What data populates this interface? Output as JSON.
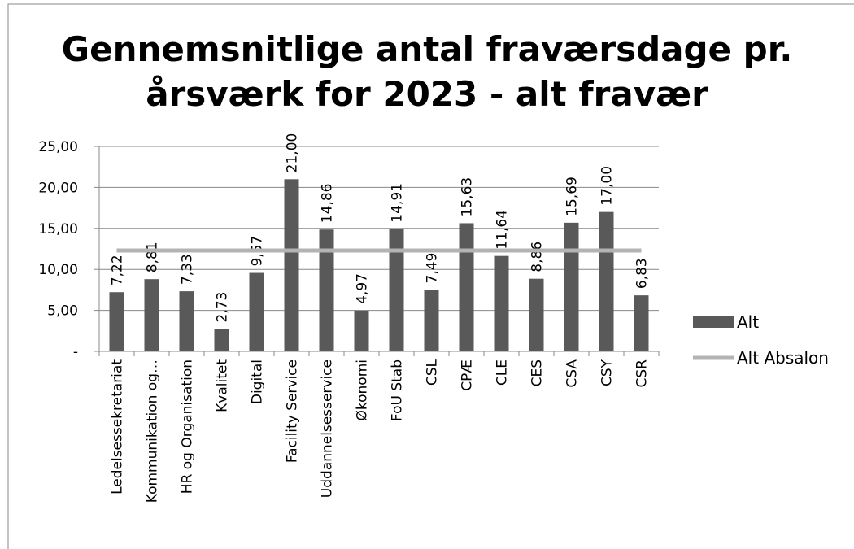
{
  "chart_data": {
    "type": "bar",
    "title": [
      "Gennemsnitlige antal fraværsdage pr.",
      "årsværk for 2023 - alt fravær"
    ],
    "categories": [
      "Ledelsessekretariat",
      "Kommunikation og…",
      "HR og Organisation",
      "Kvalitet",
      "Digital",
      "Facility Service",
      "Uddannelsesservice",
      "Økonomi",
      "FoU Stab",
      "CSL",
      "CPÆ",
      "CLE",
      "CES",
      "CSA",
      "CSY",
      "CSR"
    ],
    "series": [
      {
        "name": "Alt",
        "type": "bar",
        "color": "#595959",
        "values": [
          7.22,
          8.81,
          7.33,
          2.73,
          9.57,
          21.0,
          14.86,
          4.97,
          14.91,
          7.49,
          15.63,
          11.64,
          8.86,
          15.69,
          17.0,
          6.83
        ],
        "value_labels": [
          "7,22",
          "8,81",
          "7,33",
          "2,73",
          "9,57",
          "21,00",
          "14,86",
          "4,97",
          "14,91",
          "7,49",
          "15,63",
          "11,64",
          "8,86",
          "15,69",
          "17,00",
          "6,83"
        ]
      },
      {
        "name": "Alt Absalon",
        "type": "line",
        "color": "#b3b3b3",
        "values": [
          12.3,
          12.3,
          12.3,
          12.3,
          12.3,
          12.3,
          12.3,
          12.3,
          12.3,
          12.3,
          12.3,
          12.3,
          12.3,
          12.3,
          12.3,
          12.3
        ]
      }
    ],
    "ylim": [
      0,
      25
    ],
    "yticks": [
      {
        "value": 0,
        "label": "-"
      },
      {
        "value": 5,
        "label": "5,00"
      },
      {
        "value": 10,
        "label": "10,00"
      },
      {
        "value": 15,
        "label": "15,00"
      },
      {
        "value": 20,
        "label": "20,00"
      },
      {
        "value": 25,
        "label": "25,00"
      }
    ],
    "grid": true,
    "legend": "right"
  }
}
